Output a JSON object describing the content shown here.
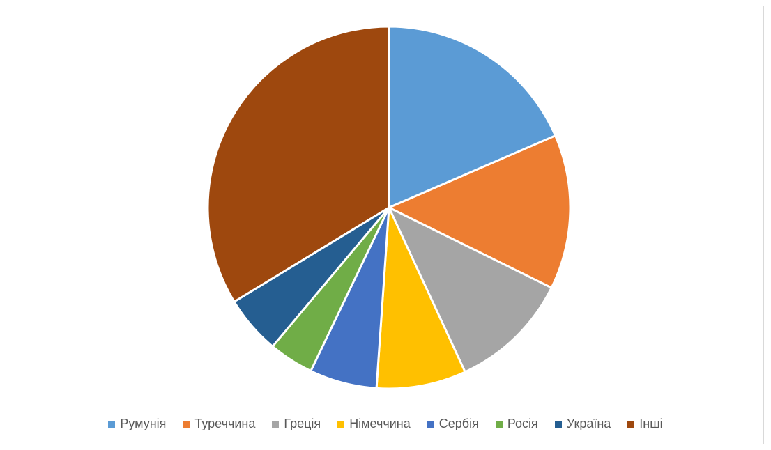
{
  "chart_data": {
    "type": "pie",
    "title": "",
    "categories": [
      "Румунія",
      "Туреччина",
      "Греція",
      "Німеччина",
      "Сербія",
      "Росія",
      "Україна",
      "Інші"
    ],
    "values": [
      18.5,
      13.8,
      10.8,
      8.0,
      6.0,
      4.0,
      5.2,
      33.7
    ],
    "colors": [
      "#5B9BD5",
      "#ED7D31",
      "#A5A5A5",
      "#FFC000",
      "#4472C4",
      "#70AD47",
      "#255E91",
      "#9E480E"
    ],
    "start_angle_deg": 0,
    "direction": "clockwise",
    "legend_position": "bottom"
  }
}
